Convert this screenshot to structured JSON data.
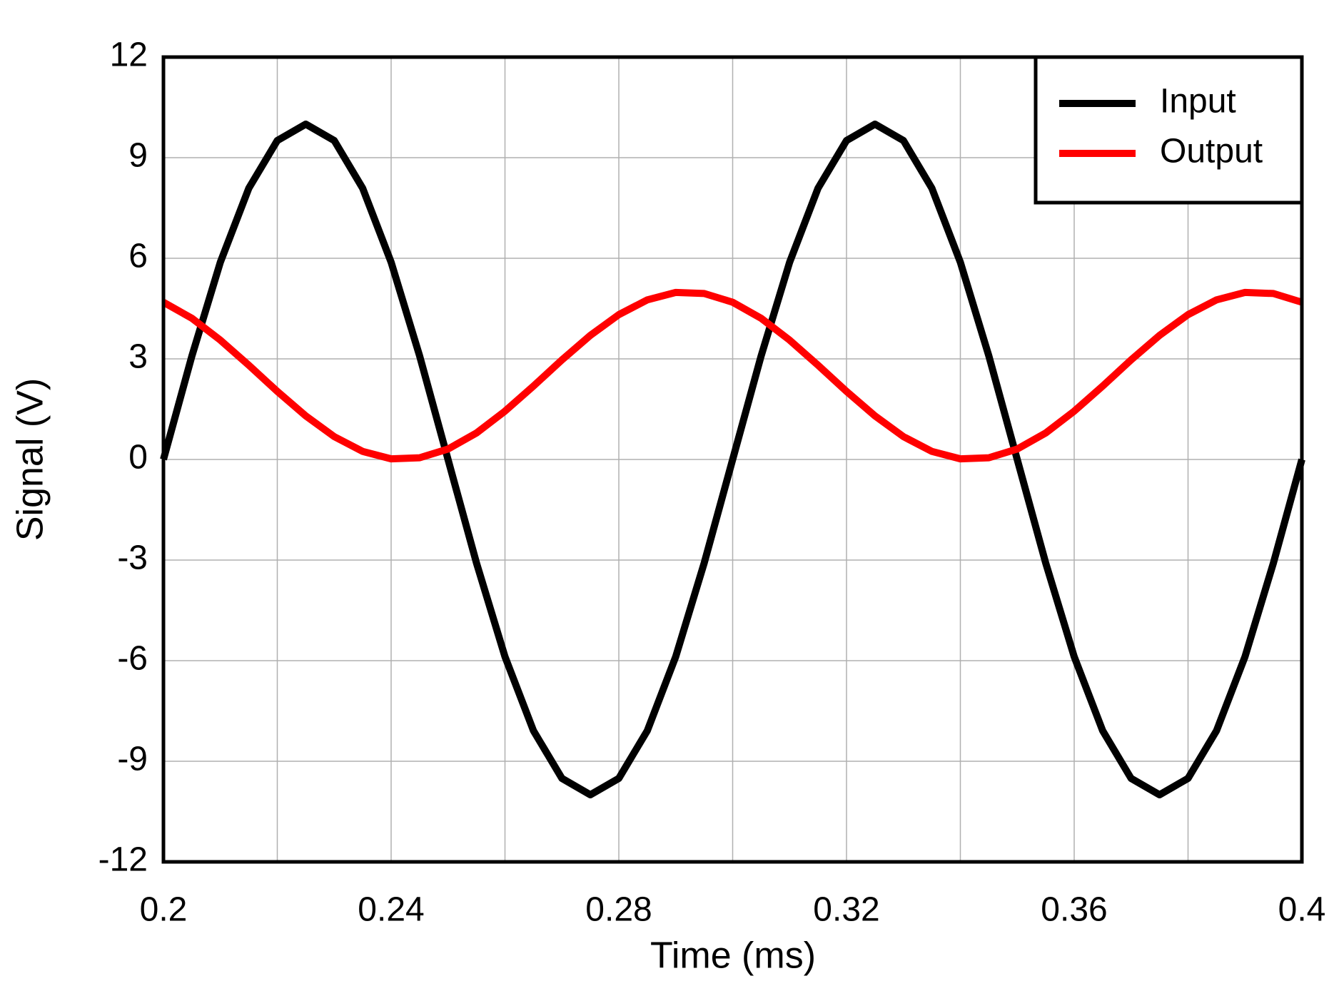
{
  "chart_data": {
    "type": "line",
    "x_label": "Time (ms)",
    "y_label": "Signal (V)",
    "x": [
      0.2,
      0.205,
      0.21,
      0.215,
      0.22,
      0.225,
      0.23,
      0.235,
      0.24,
      0.245,
      0.25,
      0.255,
      0.26,
      0.265,
      0.27,
      0.275,
      0.28,
      0.285,
      0.29,
      0.295,
      0.3,
      0.305,
      0.31,
      0.315,
      0.32,
      0.325,
      0.33,
      0.335,
      0.34,
      0.345,
      0.35,
      0.355,
      0.36,
      0.365,
      0.37,
      0.375,
      0.38,
      0.385,
      0.39,
      0.395,
      0.4
    ],
    "series": [
      {
        "name": "Input",
        "color": "#000000",
        "values": [
          0,
          3.09,
          5.88,
          8.09,
          9.51,
          10,
          9.51,
          8.09,
          5.88,
          3.09,
          0,
          -3.09,
          -5.88,
          -8.09,
          -9.51,
          -10,
          -9.51,
          -8.09,
          -5.88,
          -3.09,
          0,
          3.09,
          5.88,
          8.09,
          9.51,
          10,
          9.51,
          8.09,
          5.88,
          3.09,
          0,
          -3.09,
          -5.88,
          -8.09,
          -9.51,
          -10,
          -9.51,
          -8.09,
          -5.88,
          -3.09,
          0
        ]
      },
      {
        "name": "Output",
        "color": "#ff0000",
        "values": [
          4.69,
          4.21,
          3.56,
          2.81,
          2.03,
          1.3,
          0.68,
          0.24,
          0.02,
          0.05,
          0.31,
          0.79,
          1.44,
          2.19,
          2.97,
          3.7,
          4.32,
          4.76,
          4.98,
          4.95,
          4.69,
          4.21,
          3.56,
          2.81,
          2.03,
          1.3,
          0.68,
          0.24,
          0.02,
          0.05,
          0.31,
          0.79,
          1.44,
          2.19,
          2.97,
          3.7,
          4.32,
          4.76,
          4.98,
          4.95,
          4.69
        ]
      }
    ],
    "xlim": [
      0.2,
      0.4
    ],
    "xticks": [
      0.2,
      0.24,
      0.28,
      0.32,
      0.36,
      0.4
    ],
    "x_minor_ticks": [
      0.22,
      0.26,
      0.3,
      0.34,
      0.38
    ],
    "ylim": [
      -12,
      12
    ],
    "yticks": [
      -12,
      -9,
      -6,
      -3,
      0,
      3,
      6,
      9,
      12
    ],
    "grid": true,
    "legend": "upper-right"
  }
}
